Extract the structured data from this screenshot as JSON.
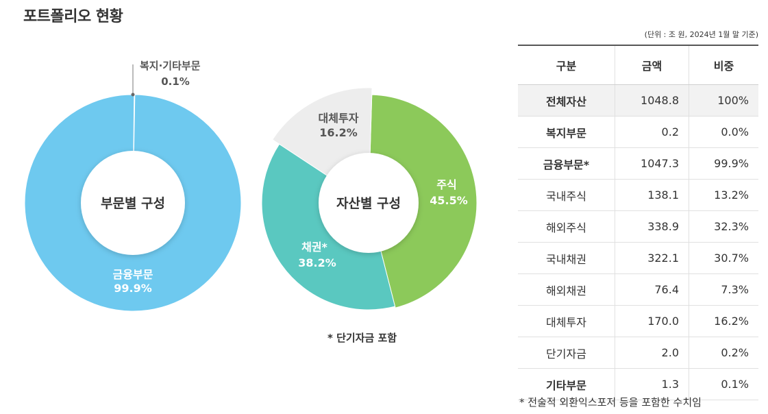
{
  "page_title": "포트폴리오 현황",
  "chart_data": [
    {
      "type": "pie",
      "title": "부문별 구성",
      "slices": [
        {
          "name": "금융부문",
          "value": 99.9,
          "label": "99.9%",
          "color": "#6ec9ef"
        },
        {
          "name": "복지·기타부문",
          "value": 0.1,
          "label": "0.1%",
          "color": "#e9e9e9"
        }
      ]
    },
    {
      "type": "pie",
      "title": "자산별 구성",
      "slices": [
        {
          "name": "주식",
          "value": 45.5,
          "label": "45.5%",
          "color": "#8cc95a"
        },
        {
          "name": "채권*",
          "value": 38.2,
          "label": "38.2%",
          "color": "#5ac8c0"
        },
        {
          "name": "대체투자",
          "value": 16.2,
          "label": "16.2%",
          "color": "#ededed"
        }
      ],
      "footnote": "* 단기자금 포함"
    }
  ],
  "table": {
    "unit_note": "(단위 : 조 원, 2024년 1월 말 기준)",
    "headers": [
      "구분",
      "금액",
      "비중"
    ],
    "rows": [
      {
        "category": "전체자산",
        "amount": "1048.8",
        "share": "100%"
      },
      {
        "category": "복지부문",
        "amount": "0.2",
        "share": "0.0%"
      },
      {
        "category": "금융부문*",
        "amount": "1047.3",
        "share": "99.9%"
      },
      {
        "category": "국내주식",
        "amount": "138.1",
        "share": "13.2%"
      },
      {
        "category": "해외주식",
        "amount": "338.9",
        "share": "32.3%"
      },
      {
        "category": "국내채권",
        "amount": "322.1",
        "share": "30.7%"
      },
      {
        "category": "해외채권",
        "amount": "76.4",
        "share": "7.3%"
      },
      {
        "category": "대체투자",
        "amount": "170.0",
        "share": "16.2%"
      },
      {
        "category": "단기자금",
        "amount": "2.0",
        "share": "0.2%"
      },
      {
        "category": "기타부문",
        "amount": "1.3",
        "share": "0.1%"
      }
    ],
    "footnote": "* 전술적 외환익스포저 등을 포함한 수치임"
  }
}
